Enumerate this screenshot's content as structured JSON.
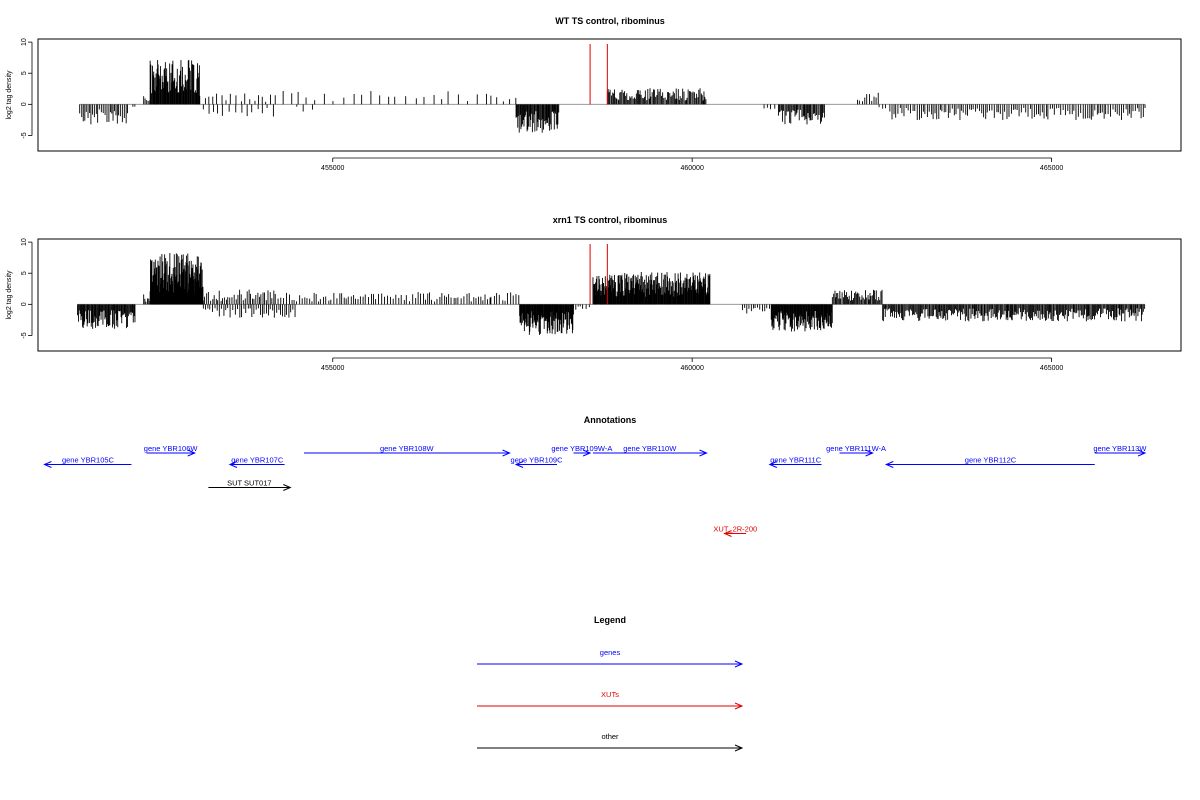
{
  "chart_data": [
    {
      "type": "bar",
      "title": "WT TS control, ribominus",
      "ylabel": "log2 tag density",
      "ylim": [
        -7.5,
        10.5
      ],
      "xlim": [
        450900,
        466800
      ],
      "y_ticks": [
        10,
        5,
        0,
        -5
      ],
      "y_tick_labels": [
        "10",
        "5",
        "0",
        "-5"
      ],
      "x_ticks": [
        455000,
        460000,
        465000
      ],
      "x_tick_labels": [
        "455000",
        "460000",
        "465000"
      ],
      "markers": [
        458580,
        458820
      ],
      "marker_color": "#e00000",
      "baseline_color": "#999999",
      "regions": [
        {
          "start": 451480,
          "end": 452150,
          "sign": -1,
          "amp": 3.2,
          "step": 24
        },
        {
          "start": 452220,
          "end": 452250,
          "sign": -1,
          "amp": 1.0,
          "step": 30
        },
        {
          "start": 452370,
          "end": 452460,
          "sign": 1,
          "amp": 1.2,
          "step": 20
        },
        {
          "start": 452460,
          "end": 453150,
          "sign": 1,
          "amp": 6.5,
          "step": 9
        },
        {
          "start": 453150,
          "end": 454200,
          "sign": 1,
          "amp": 1.6,
          "step": 65
        },
        {
          "start": 453200,
          "end": 454200,
          "sign": -1,
          "amp": 1.8,
          "step": 75
        },
        {
          "start": 454200,
          "end": 457200,
          "sign": 1,
          "amp": 2.0,
          "step": 120
        },
        {
          "start": 454500,
          "end": 454800,
          "sign": -1,
          "amp": 1.2,
          "step": 100
        },
        {
          "start": 457200,
          "end": 457550,
          "sign": 1,
          "amp": 1.3,
          "step": 80
        },
        {
          "start": 457550,
          "end": 458150,
          "sign": -1,
          "amp": 4.2,
          "step": 11
        },
        {
          "start": 458820,
          "end": 460200,
          "sign": 1,
          "amp": 2.4,
          "step": 15
        },
        {
          "start": 461000,
          "end": 461200,
          "sign": -1,
          "amp": 0.8,
          "step": 60
        },
        {
          "start": 461200,
          "end": 461850,
          "sign": -1,
          "amp": 3.0,
          "step": 15
        },
        {
          "start": 462300,
          "end": 462600,
          "sign": 1,
          "amp": 1.8,
          "step": 35
        },
        {
          "start": 462600,
          "end": 462700,
          "sign": -1,
          "amp": 1.0,
          "step": 50
        },
        {
          "start": 462750,
          "end": 466300,
          "sign": -1,
          "amp": 2.3,
          "step": 28
        }
      ]
    },
    {
      "type": "bar",
      "title": "xrn1 TS control, ribominus",
      "ylabel": "log2 tag density",
      "ylim": [
        -7.5,
        10.5
      ],
      "xlim": [
        450900,
        466800
      ],
      "y_ticks": [
        10,
        5,
        0,
        -5
      ],
      "y_tick_labels": [
        "10",
        "5",
        "0",
        "-5"
      ],
      "x_ticks": [
        455000,
        460000,
        465000
      ],
      "x_tick_labels": [
        "455000",
        "460000",
        "465000"
      ],
      "markers": [
        458580,
        458820
      ],
      "marker_color": "#e00000",
      "baseline_color": "#999999",
      "regions": [
        {
          "start": 451450,
          "end": 452250,
          "sign": -1,
          "amp": 3.6,
          "step": 11
        },
        {
          "start": 452370,
          "end": 452460,
          "sign": 1,
          "amp": 1.5,
          "step": 20
        },
        {
          "start": 452460,
          "end": 453200,
          "sign": 1,
          "amp": 7.5,
          "step": 6
        },
        {
          "start": 453200,
          "end": 454200,
          "sign": 1,
          "amp": 2.2,
          "step": 25
        },
        {
          "start": 453200,
          "end": 454500,
          "sign": -1,
          "amp": 2.0,
          "step": 30
        },
        {
          "start": 454200,
          "end": 457200,
          "sign": 1,
          "amp": 1.8,
          "step": 35
        },
        {
          "start": 457200,
          "end": 457600,
          "sign": 1,
          "amp": 1.8,
          "step": 40
        },
        {
          "start": 457600,
          "end": 458350,
          "sign": -1,
          "amp": 4.5,
          "step": 8
        },
        {
          "start": 458350,
          "end": 458580,
          "sign": -1,
          "amp": 1.0,
          "step": 40
        },
        {
          "start": 458620,
          "end": 460250,
          "sign": 1,
          "amp": 4.8,
          "step": 8
        },
        {
          "start": 460700,
          "end": 461100,
          "sign": -1,
          "amp": 1.4,
          "step": 30
        },
        {
          "start": 461100,
          "end": 461950,
          "sign": -1,
          "amp": 4.0,
          "step": 8
        },
        {
          "start": 461950,
          "end": 462650,
          "sign": 1,
          "amp": 2.2,
          "step": 15
        },
        {
          "start": 462650,
          "end": 466300,
          "sign": -1,
          "amp": 2.5,
          "step": 14
        }
      ]
    }
  ],
  "annotations": {
    "title": "Annotations",
    "xlim": [
      450900,
      466800
    ],
    "items": [
      {
        "label": "gene YBR105C",
        "start": 452200,
        "end": 450990,
        "row": 1,
        "color": "#0000ff"
      },
      {
        "label": "gene YBR106W",
        "start": 452410,
        "end": 453080,
        "row": 0,
        "color": "#0000ff"
      },
      {
        "label": "gene YBR107C",
        "start": 454330,
        "end": 453570,
        "row": 1,
        "color": "#0000ff"
      },
      {
        "label": "gene YBR108W",
        "start": 454600,
        "end": 457460,
        "row": 0,
        "color": "#0000ff"
      },
      {
        "label": "gene YBR109C",
        "start": 458120,
        "end": 457550,
        "row": 1,
        "color": "#0000ff"
      },
      {
        "label": "gene YBR109W-A",
        "start": 458350,
        "end": 458580,
        "row": 0,
        "color": "#0000ff"
      },
      {
        "label": "gene YBR110W",
        "start": 458620,
        "end": 460200,
        "row": 0,
        "color": "#0000ff"
      },
      {
        "label": "gene YBR111C",
        "start": 461800,
        "end": 461080,
        "row": 1,
        "color": "#0000ff"
      },
      {
        "label": "gene YBR111W-A",
        "start": 462050,
        "end": 462510,
        "row": 0,
        "color": "#0000ff"
      },
      {
        "label": "gene YBR112C",
        "start": 465600,
        "end": 462700,
        "row": 1,
        "color": "#0000ff"
      },
      {
        "label": "gene YBR113W",
        "start": 465600,
        "end": 466300,
        "row": 0,
        "color": "#0000ff"
      },
      {
        "label": "SUT SUT017",
        "start": 453270,
        "end": 454410,
        "row": 3,
        "color": "#000000"
      },
      {
        "label": "XUT_2R-200",
        "start": 460750,
        "end": 460450,
        "row": 7,
        "color": "#e00000"
      }
    ]
  },
  "legend": {
    "title": "Legend",
    "items": [
      {
        "label": "genes",
        "color": "#0000ff"
      },
      {
        "label": "XUTs",
        "color": "#e00000"
      },
      {
        "label": "other",
        "color": "#000000"
      }
    ]
  }
}
